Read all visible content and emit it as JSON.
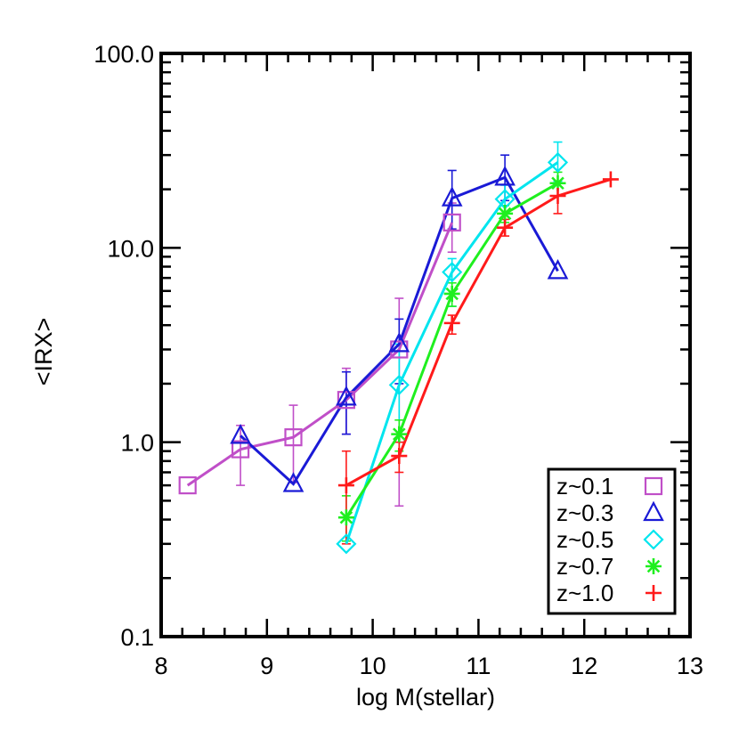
{
  "chart_data": {
    "type": "line",
    "xlabel": "log M(stellar)",
    "ylabel": "<IRX>",
    "xlim": [
      8,
      13
    ],
    "ylim": [
      0.1,
      100
    ],
    "yscale": "log",
    "x_ticks": [
      8,
      9,
      10,
      11,
      12,
      13
    ],
    "x_tick_labels": [
      "8",
      "9",
      "10",
      "11",
      "12",
      "13"
    ],
    "y_ticks": [
      0.1,
      1,
      10,
      100
    ],
    "y_tick_labels": [
      "0.1",
      "1.0",
      "10.0",
      "100.0"
    ],
    "legend_position": "bottom-right",
    "series": [
      {
        "name": "z~0.1",
        "color": "#c04fc8",
        "marker": "square",
        "x": [
          8.25,
          8.75,
          9.25,
          9.75,
          10.25,
          10.75
        ],
        "y": [
          0.6,
          0.92,
          1.06,
          1.65,
          3.0,
          13.5
        ],
        "err_low": [
          null,
          0.6,
          0.62,
          1.1,
          0.47,
          9.5
        ],
        "err_high": [
          null,
          1.22,
          1.55,
          2.4,
          5.5,
          17.0
        ]
      },
      {
        "name": "z~0.3",
        "color": "#1a1ad6",
        "marker": "triangle",
        "x": [
          8.75,
          9.25,
          9.75,
          10.25,
          10.75,
          11.25,
          11.75
        ],
        "y": [
          1.08,
          0.61,
          1.7,
          3.2,
          18.0,
          23.0,
          7.6
        ],
        "err_low": [
          null,
          null,
          1.1,
          2.0,
          12.5,
          17.5,
          null
        ],
        "err_high": [
          null,
          null,
          2.3,
          4.3,
          25.0,
          30.0,
          null
        ]
      },
      {
        "name": "z~0.5",
        "color": "#00e5ee",
        "marker": "diamond",
        "x": [
          9.75,
          10.25,
          10.75,
          11.25,
          11.75
        ],
        "y": [
          0.3,
          1.97,
          7.5,
          17.8,
          27.5
        ],
        "err_low": [
          null,
          1.0,
          5.0,
          15.0,
          22.0
        ],
        "err_high": [
          null,
          3.2,
          8.8,
          21.0,
          35.0
        ]
      },
      {
        "name": "z~0.7",
        "color": "#1fef1f",
        "marker": "asterisk",
        "x": [
          9.75,
          10.25,
          10.75,
          11.25,
          11.75
        ],
        "y": [
          0.41,
          1.1,
          5.8,
          15.0,
          21.5
        ],
        "err_low": [
          0.31,
          0.9,
          5.0,
          13.5,
          18.5
        ],
        "err_high": [
          0.53,
          1.3,
          6.6,
          16.5,
          24.5
        ]
      },
      {
        "name": "z~1.0",
        "color": "#ff1a1a",
        "marker": "plus",
        "x": [
          9.75,
          10.25,
          10.75,
          11.25,
          11.75,
          12.25
        ],
        "y": [
          0.6,
          0.85,
          4.1,
          12.7,
          18.5,
          22.5
        ],
        "err_low": [
          0.3,
          0.7,
          3.6,
          11.5,
          15.0,
          null
        ],
        "err_high": [
          0.9,
          1.0,
          4.5,
          14.0,
          21.5,
          null
        ]
      }
    ]
  }
}
